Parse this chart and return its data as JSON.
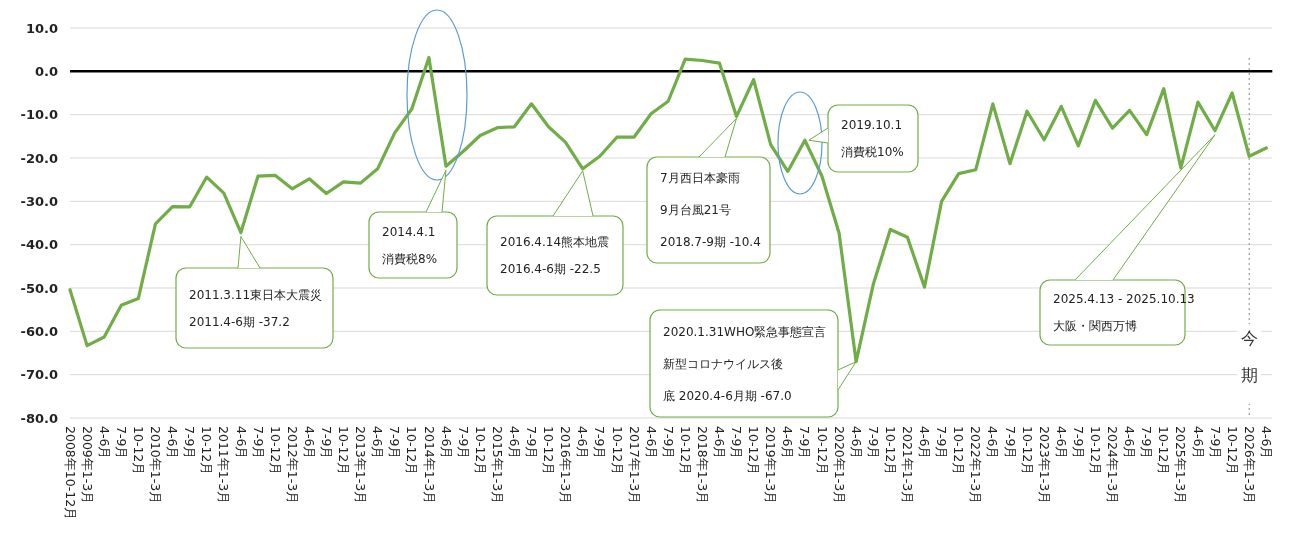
{
  "chart_data": {
    "type": "line",
    "categories": [
      "2008年10-12月",
      "2009年1-3月",
      "4-6月",
      "7-9月",
      "10-12月",
      "2010年1-3月",
      "4-6月",
      "7-9月",
      "10-12月",
      "2011年1-3月",
      "4-6月",
      "7-9月",
      "10-12月",
      "2012年1-3月",
      "4-6月",
      "7-9月",
      "10-12月",
      "2013年1-3月",
      "4-6月",
      "7-9月",
      "10-12月",
      "2014年1-3月",
      "4-6月",
      "7-9月",
      "10-12月",
      "2015年1-3月",
      "4-6月",
      "7-9月",
      "10-12月",
      "2016年1-3月",
      "4-6月",
      "7-9月",
      "10-12月",
      "2017年1-3月",
      "4-6月",
      "7-9月",
      "10-12月",
      "2018年1-3月",
      "4-6月",
      "7-9月",
      "10-12月",
      "2019年1-3月",
      "4-6月",
      "7-9月",
      "10-12月",
      "2020年1-3月",
      "4-6月",
      "7-9月",
      "10-12月",
      "2021年1-3月",
      "4-6月",
      "7-9月",
      "10-12月",
      "2022年1-3月",
      "4-6月",
      "7-9月",
      "10-12月",
      "2023年1-3月",
      "4-6月",
      "7-9月",
      "10-12月",
      "2024年1-3月",
      "4-6月",
      "7-9月",
      "10-12月",
      "2025年1-3月",
      "4-6月",
      "7-9月",
      "10-12月",
      "2026年1-3月",
      "4-6月"
    ],
    "series": [
      {
        "color": "#70ad47",
        "values": [
          -50.4,
          -63.3,
          -61.3,
          -54.0,
          -52.4,
          -35.2,
          -31.2,
          -31.3,
          -24.4,
          -28.1,
          -37.2,
          -24.2,
          -24.0,
          -27.1,
          -24.8,
          -28.2,
          -25.5,
          -25.8,
          -22.5,
          -14.2,
          -8.7,
          3.2,
          -21.9,
          -18.5,
          -14.8,
          -13.0,
          -12.8,
          -7.5,
          -12.8,
          -16.4,
          -22.5,
          -19.6,
          -15.2,
          -15.2,
          -9.8,
          -6.9,
          2.8,
          2.5,
          1.9,
          -10.4,
          -1.9,
          -16.9,
          -23.1,
          -15.9,
          -24.2,
          -37.3,
          -67.0,
          -49.2,
          -36.5,
          -38.3,
          -49.8,
          -30.0,
          -23.6,
          -22.7,
          -7.5,
          -21.3,
          -9.2,
          -15.8,
          -8.1,
          -17.2,
          -6.7,
          -13.1,
          -9.0,
          -14.6,
          -4.0,
          -22.3,
          -7.1,
          -13.7,
          -5.0,
          -19.6,
          -17.7
        ]
      }
    ],
    "ylim": [
      -80,
      10
    ],
    "yticks": [
      {
        "value": 10,
        "label": "10.0"
      },
      {
        "value": 0,
        "label": "0.0"
      },
      {
        "value": -10,
        "label": "-10.0"
      },
      {
        "value": -20,
        "label": "-20.0"
      },
      {
        "value": -30,
        "label": "-30.0"
      },
      {
        "value": -40,
        "label": "-40.0"
      },
      {
        "value": -50,
        "label": "-50.0"
      },
      {
        "value": -60,
        "label": "-60.0"
      },
      {
        "value": -70,
        "label": "-70.0"
      },
      {
        "value": -80,
        "label": "-80.0"
      }
    ],
    "grid": "y",
    "marker": "none",
    "line_style": "solid",
    "ref_lines": [
      {
        "axis": "y",
        "value": 0,
        "color": "#000000"
      },
      {
        "axis": "x",
        "value": "2026年1-3月",
        "label": "今期",
        "line_style": "dotted",
        "color": "#888888"
      }
    ],
    "annotations": [
      "2011.3.11東日本大震災",
      "2011.4-6期  -37.2",
      "2014.4.1",
      "消費税8%",
      "2016.4.14熊本地震",
      "2016.4-6期  -22.5",
      "7月西日本豪雨",
      "9月台風21号",
      "2018.7-9期 -10.4",
      "2019.10.1",
      "消費税10%",
      "2020.1.31WHO緊急事態宣言",
      "新型コロナウイルス後",
      "底 2020.4-6月期  -67.0",
      "2025.4.13 - 2025.10.13",
      "大阪・関西万博"
    ]
  }
}
